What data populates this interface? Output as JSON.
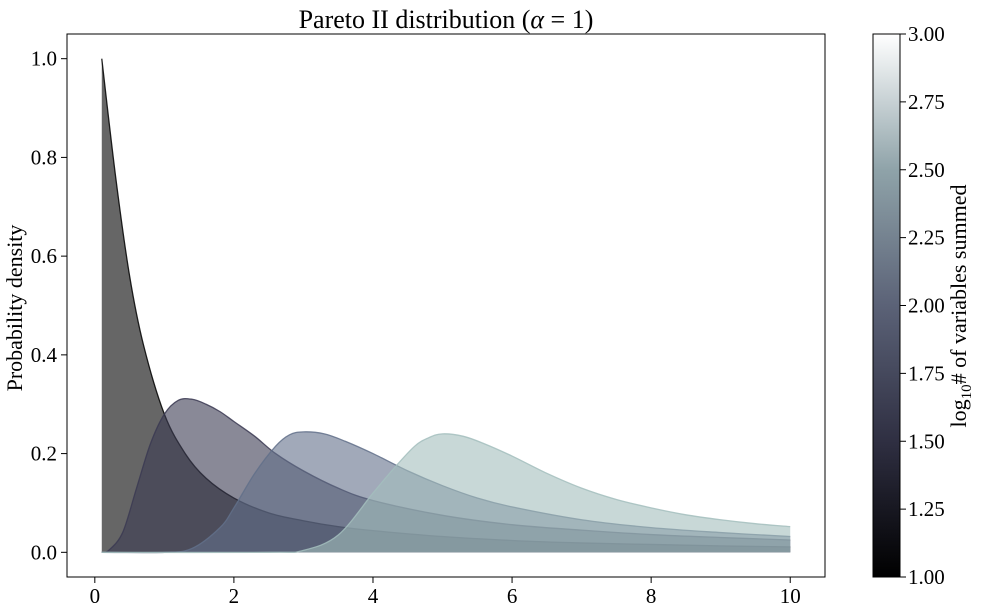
{
  "chart_data": {
    "type": "area",
    "title": "Pareto II distribution (α = 1)",
    "title_parts": {
      "prefix": "Pareto II distribution (",
      "symbol": "α",
      "equals": " = 1",
      "suffix": ")"
    },
    "xlabel": "",
    "ylabel": "Probability density",
    "xlim": [
      -0.4,
      10.5
    ],
    "ylim": [
      -0.05,
      1.05
    ],
    "xticks": [
      0,
      2,
      4,
      6,
      8,
      10
    ],
    "yticks": [
      0.0,
      0.2,
      0.4,
      0.6,
      0.8,
      1.0
    ],
    "xtick_labels": [
      "0",
      "2",
      "4",
      "6",
      "8",
      "10"
    ],
    "ytick_labels": [
      "0.0",
      "0.2",
      "0.4",
      "0.6",
      "0.8",
      "1.0"
    ],
    "series": [
      {
        "log10_n": 1.0,
        "fill": "#000000",
        "x": [
          0.1,
          0.3,
          0.5,
          0.7,
          1.0,
          1.3,
          1.6,
          2.0,
          2.5,
          3.0,
          3.5,
          4.0,
          5.0,
          6.0,
          7.0,
          8.0,
          9.0,
          10.0
        ],
        "y": [
          1.0,
          0.76,
          0.56,
          0.42,
          0.28,
          0.2,
          0.15,
          0.11,
          0.08,
          0.064,
          0.052,
          0.044,
          0.032,
          0.024,
          0.019,
          0.016,
          0.013,
          0.011
        ]
      },
      {
        "log10_n": 1.67,
        "fill": "#3b3a52",
        "x": [
          0.1,
          0.2,
          0.4,
          0.6,
          0.8,
          1.0,
          1.2,
          1.4,
          1.6,
          1.8,
          2.0,
          2.3,
          2.6,
          3.0,
          3.5,
          4.0,
          5.0,
          6.0,
          7.0,
          8.0,
          9.0,
          10.0
        ],
        "y": [
          0.0,
          0.004,
          0.04,
          0.13,
          0.22,
          0.28,
          0.308,
          0.31,
          0.3,
          0.285,
          0.265,
          0.235,
          0.2,
          0.165,
          0.13,
          0.105,
          0.075,
          0.056,
          0.045,
          0.036,
          0.03,
          0.025
        ]
      },
      {
        "log10_n": 2.1,
        "fill": "#62708a",
        "x": [
          0.1,
          1.0,
          1.4,
          1.8,
          2.0,
          2.3,
          2.6,
          2.8,
          3.0,
          3.3,
          3.6,
          4.0,
          4.5,
          5.0,
          5.5,
          6.0,
          7.0,
          8.0,
          9.0,
          10.0
        ],
        "y": [
          0.0,
          0.0,
          0.008,
          0.05,
          0.09,
          0.16,
          0.215,
          0.238,
          0.244,
          0.24,
          0.225,
          0.2,
          0.165,
          0.135,
          0.11,
          0.092,
          0.066,
          0.05,
          0.04,
          0.032
        ]
      },
      {
        "log10_n": 2.55,
        "fill": "#a3bebd",
        "x": [
          0.1,
          2.5,
          3.0,
          3.5,
          4.0,
          4.3,
          4.6,
          4.8,
          5.0,
          5.3,
          5.6,
          6.0,
          6.5,
          7.0,
          7.5,
          8.0,
          8.5,
          9.0,
          9.5,
          10.0
        ],
        "y": [
          0.0,
          0.0,
          0.004,
          0.035,
          0.12,
          0.17,
          0.215,
          0.232,
          0.24,
          0.235,
          0.22,
          0.195,
          0.16,
          0.13,
          0.107,
          0.09,
          0.076,
          0.066,
          0.058,
          0.052
        ]
      }
    ],
    "colorbar": {
      "label": "# of variables summed",
      "label_prefix": "log",
      "label_subscript": "10",
      "range": [
        1.0,
        3.0
      ],
      "ticks": [
        1.0,
        1.25,
        1.5,
        1.75,
        2.0,
        2.25,
        2.5,
        2.75,
        3.0
      ],
      "tick_labels": [
        "1.00",
        "1.25",
        "1.50",
        "1.75",
        "2.00",
        "2.25",
        "2.50",
        "2.75",
        "3.00"
      ],
      "colormap": "bone",
      "colors": [
        "#000000",
        "#2f2f42",
        "#5b6277",
        "#8fa3a9",
        "#ffffff"
      ]
    }
  }
}
